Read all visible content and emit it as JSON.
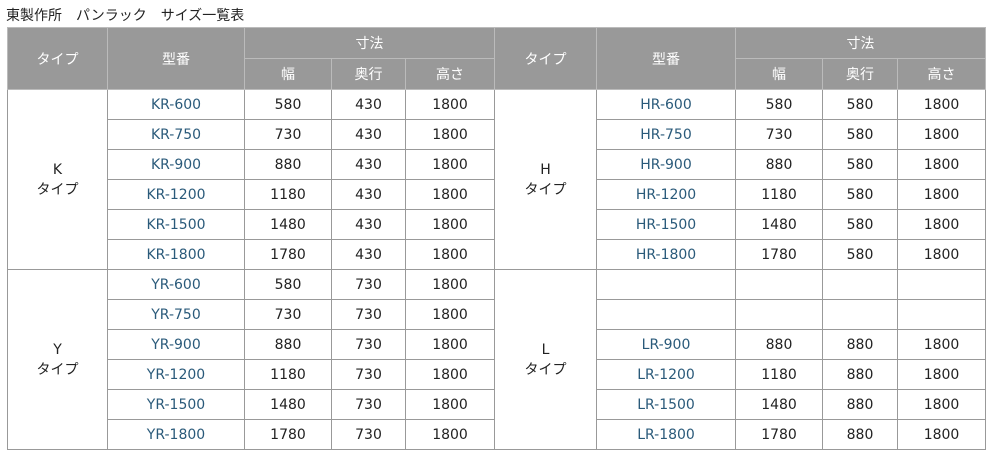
{
  "title": "東製作所　パンラック　サイズ一覧表",
  "header": {
    "type": "タイプ",
    "model": "型番",
    "dims": "寸法",
    "width": "幅",
    "depth": "奥行",
    "height": "高さ"
  },
  "colors": {
    "header_bg": "#999999",
    "model_text": "#2a5a7a"
  },
  "groups": [
    {
      "left": {
        "code": "K",
        "label": "タイプ",
        "rows": [
          [
            "KR-600",
            "580",
            "430",
            "1800"
          ],
          [
            "KR-750",
            "730",
            "430",
            "1800"
          ],
          [
            "KR-900",
            "880",
            "430",
            "1800"
          ],
          [
            "KR-1200",
            "1180",
            "430",
            "1800"
          ],
          [
            "KR-1500",
            "1480",
            "430",
            "1800"
          ],
          [
            "KR-1800",
            "1780",
            "430",
            "1800"
          ]
        ]
      },
      "right": {
        "code": "H",
        "label": "タイプ",
        "rows": [
          [
            "HR-600",
            "580",
            "580",
            "1800"
          ],
          [
            "HR-750",
            "730",
            "580",
            "1800"
          ],
          [
            "HR-900",
            "880",
            "580",
            "1800"
          ],
          [
            "HR-1200",
            "1180",
            "580",
            "1800"
          ],
          [
            "HR-1500",
            "1480",
            "580",
            "1800"
          ],
          [
            "HR-1800",
            "1780",
            "580",
            "1800"
          ]
        ]
      }
    },
    {
      "left": {
        "code": "Y",
        "label": "タイプ",
        "rows": [
          [
            "YR-600",
            "580",
            "730",
            "1800"
          ],
          [
            "YR-750",
            "730",
            "730",
            "1800"
          ],
          [
            "YR-900",
            "880",
            "730",
            "1800"
          ],
          [
            "YR-1200",
            "1180",
            "730",
            "1800"
          ],
          [
            "YR-1500",
            "1480",
            "730",
            "1800"
          ],
          [
            "YR-1800",
            "1780",
            "730",
            "1800"
          ]
        ]
      },
      "right": {
        "code": "L",
        "label": "タイプ",
        "rows": [
          [
            "",
            "",
            "",
            ""
          ],
          [
            "",
            "",
            "",
            ""
          ],
          [
            "LR-900",
            "880",
            "880",
            "1800"
          ],
          [
            "LR-1200",
            "1180",
            "880",
            "1800"
          ],
          [
            "LR-1500",
            "1480",
            "880",
            "1800"
          ],
          [
            "LR-1800",
            "1780",
            "880",
            "1800"
          ]
        ]
      }
    }
  ]
}
